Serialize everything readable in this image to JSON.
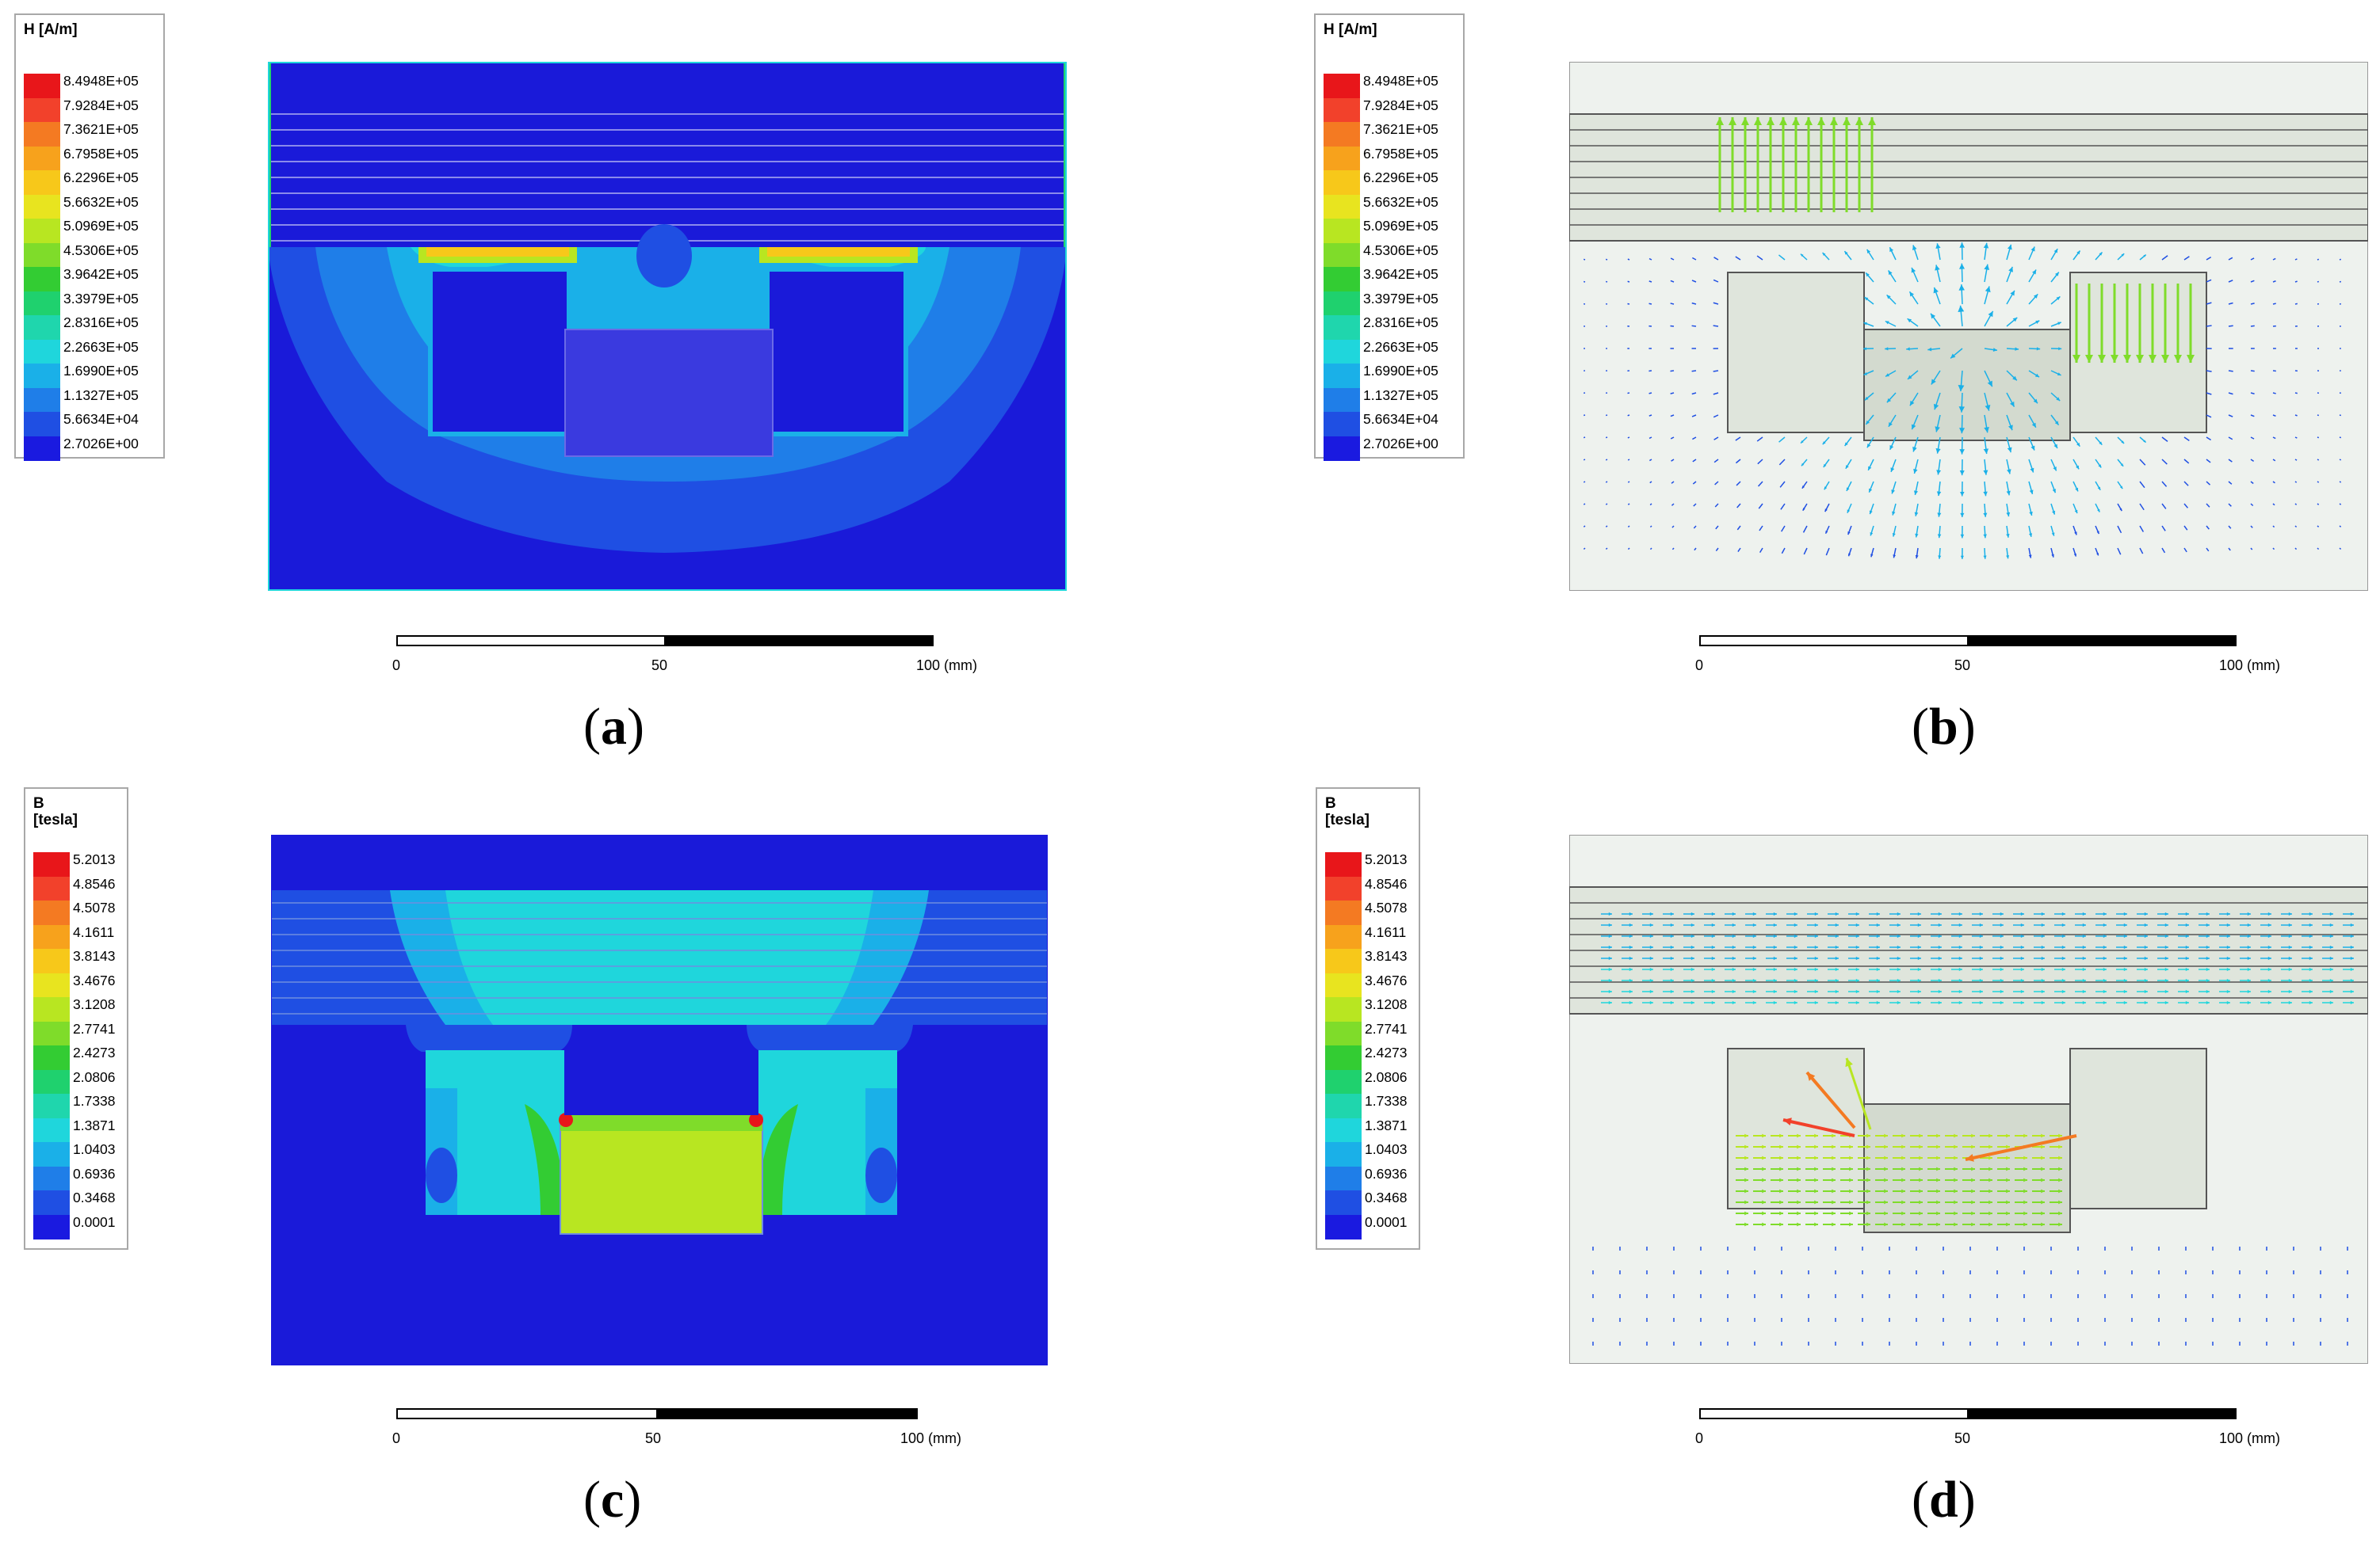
{
  "panels": [
    {
      "caption_letter": "a",
      "legend": {
        "title": "H [A/m]",
        "values": [
          "8.4948E+05",
          "7.9284E+05",
          "7.3621E+05",
          "6.7958E+05",
          "6.2296E+05",
          "5.6632E+05",
          "5.0969E+05",
          "4.5306E+05",
          "3.9642E+05",
          "3.3979E+05",
          "2.8316E+05",
          "2.2663E+05",
          "1.6990E+05",
          "1.1327E+05",
          "5.6634E+04",
          "2.7026E+00"
        ]
      },
      "plot": {
        "style": "contour",
        "field": "H"
      },
      "scale": {
        "labels": [
          "0",
          "50",
          "100 (mm)"
        ]
      }
    },
    {
      "caption_letter": "b",
      "legend": {
        "title": "H [A/m]",
        "values": [
          "8.4948E+05",
          "7.9284E+05",
          "7.3621E+05",
          "6.7958E+05",
          "6.2296E+05",
          "5.6632E+05",
          "5.0969E+05",
          "4.5306E+05",
          "3.9642E+05",
          "3.3979E+05",
          "2.8316E+05",
          "2.2663E+05",
          "1.6990E+05",
          "1.1327E+05",
          "5.6634E+04",
          "2.7026E+00"
        ]
      },
      "plot": {
        "style": "vector",
        "field": "H"
      },
      "scale": {
        "labels": [
          "0",
          "50",
          "100 (mm)"
        ]
      }
    },
    {
      "caption_letter": "c",
      "legend": {
        "title": "B\n[tesla]",
        "values": [
          "5.2013",
          "4.8546",
          "4.5078",
          "4.1611",
          "3.8143",
          "3.4676",
          "3.1208",
          "2.7741",
          "2.4273",
          "2.0806",
          "1.7338",
          "1.3871",
          "1.0403",
          "0.6936",
          "0.3468",
          "0.0001"
        ]
      },
      "plot": {
        "style": "contour",
        "field": "B"
      },
      "scale": {
        "labels": [
          "0",
          "50",
          "100 (mm)"
        ]
      }
    },
    {
      "caption_letter": "d",
      "legend": {
        "title": "B\n[tesla]",
        "values": [
          "5.2013",
          "4.8546",
          "4.5078",
          "4.1611",
          "3.8143",
          "3.4676",
          "3.1208",
          "2.7741",
          "2.4273",
          "2.0806",
          "1.7338",
          "1.3871",
          "1.0403",
          "0.6936",
          "0.3468",
          "0.0001"
        ]
      },
      "plot": {
        "style": "vector",
        "field": "B"
      },
      "scale": {
        "labels": [
          "0",
          "50",
          "100 (mm)"
        ]
      }
    }
  ],
  "colormap": [
    "#e8161a",
    "#f2412b",
    "#f47a22",
    "#f7a21c",
    "#f7c81a",
    "#e8e41f",
    "#b8e621",
    "#7fdc2a",
    "#33cc33",
    "#1fd16e",
    "#1fd6ad",
    "#1fd6dc",
    "#1ab0e8",
    "#1f7ee8",
    "#1f4fe3",
    "#1a1ae0"
  ],
  "colors": {
    "field_bg": "#1a1ad9",
    "vector_bg": "#eef2ee",
    "legend_border": "#a8a8a8"
  }
}
